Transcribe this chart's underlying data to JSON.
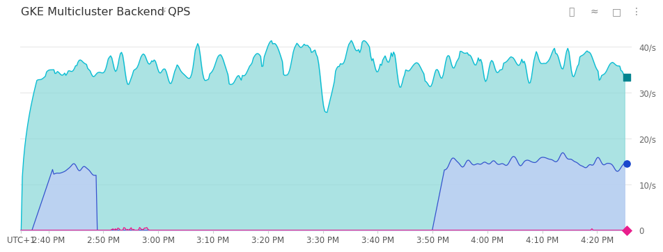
{
  "title": "GKE Multicluster Backend QPS",
  "x_labels": [
    "UTC+1",
    "2:40 PM",
    "2:50 PM",
    "3:00 PM",
    "3:10 PM",
    "3:20 PM",
    "3:30 PM",
    "3:40 PM",
    "3:50 PM",
    "4:00 PM",
    "4:10 PM",
    "4:20 PM"
  ],
  "y_ticks": [
    0,
    10,
    20,
    30,
    40
  ],
  "y_tick_labels": [
    "0",
    "10/s",
    "20/s",
    "30/s",
    "40/s"
  ],
  "ylim": [
    0,
    43
  ],
  "bg_color": "#ffffff",
  "plot_bg": "#ffffff",
  "grid_color": "#e8e8e8",
  "teal_fill_color": "#8fdada",
  "teal_line_color": "#00bcd4",
  "blue_fill_color": "#c0cef5",
  "blue_line_color": "#3355cc",
  "pink_line_color": "#e91e8c",
  "end_dot_teal_color": "#00838f",
  "end_dot_blue_color": "#1a47cc",
  "end_dot_pink_color": "#e91e8c",
  "total_minutes": 110,
  "tick_times_min": [
    0,
    5,
    15,
    25,
    35,
    45,
    55,
    65,
    75,
    85,
    95,
    105
  ]
}
